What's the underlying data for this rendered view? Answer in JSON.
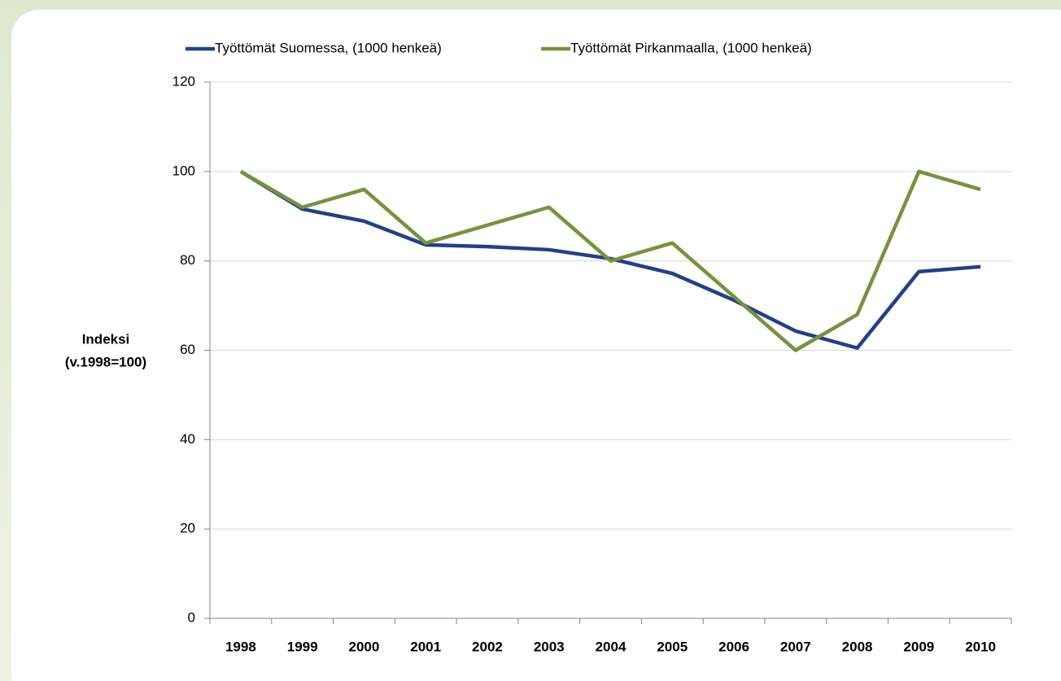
{
  "chart_data": {
    "type": "line",
    "ylabel": [
      "Indeksi",
      "(v.1998=100)"
    ],
    "categories": [
      "1998",
      "1999",
      "2000",
      "2001",
      "2002",
      "2003",
      "2004",
      "2005",
      "2006",
      "2007",
      "2008",
      "2009",
      "2010"
    ],
    "series": [
      {
        "name": "Työttömät Suomessa, (1000 henkeä)",
        "color": "#233f8b",
        "values": [
          100,
          91.6,
          88.9,
          83.6,
          83.2,
          82.5,
          80.5,
          77.2,
          71.2,
          64.3,
          60.5,
          77.6,
          78.7
        ]
      },
      {
        "name": "Työttömät Pirkanmaalla, (1000 henkeä)",
        "color": "#76933c",
        "values": [
          100,
          92,
          96,
          84,
          88,
          92,
          80,
          84,
          72,
          60,
          68,
          100,
          96
        ]
      }
    ],
    "ylim": [
      0,
      120
    ],
    "yticks": [
      0,
      20,
      40,
      60,
      80,
      100,
      120
    ],
    "grid": true,
    "legend": "top"
  }
}
